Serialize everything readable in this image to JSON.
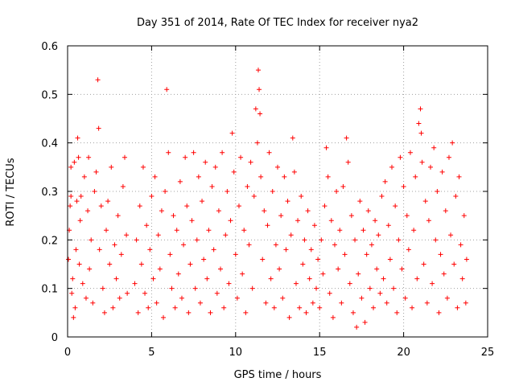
{
  "chart_data": {
    "type": "scatter",
    "title": "Day 351 of 2014, Rate Of TEC Index for receiver nya2",
    "xlabel": "GPS time / hours",
    "ylabel": "ROTI / TECUs",
    "xlim": [
      0,
      25
    ],
    "ylim": [
      0,
      0.6
    ],
    "xticks": [
      0,
      5,
      10,
      15,
      20,
      25
    ],
    "yticks": [
      0,
      0.1,
      0.2,
      0.3,
      0.4,
      0.5,
      0.6
    ],
    "xtick_labels": [
      "0",
      "5",
      "10",
      "15",
      "20",
      "25"
    ],
    "ytick_labels": [
      "0",
      "0.1",
      "0.2",
      "0.3",
      "0.4",
      "0.5",
      "0.6"
    ],
    "grid": true,
    "marker": "+",
    "marker_color": "#ff0000",
    "series": [
      {
        "name": "ROTI",
        "points": [
          [
            0.05,
            0.16
          ],
          [
            0.1,
            0.22
          ],
          [
            0.15,
            0.27
          ],
          [
            0.2,
            0.29
          ],
          [
            0.2,
            0.35
          ],
          [
            0.25,
            0.09
          ],
          [
            0.3,
            0.12
          ],
          [
            0.35,
            0.04
          ],
          [
            0.4,
            0.36
          ],
          [
            0.45,
            0.06
          ],
          [
            0.5,
            0.18
          ],
          [
            0.55,
            0.28
          ],
          [
            0.6,
            0.41
          ],
          [
            0.65,
            0.37
          ],
          [
            0.7,
            0.15
          ],
          [
            0.75,
            0.24
          ],
          [
            0.8,
            0.29
          ],
          [
            0.9,
            0.11
          ],
          [
            1.0,
            0.33
          ],
          [
            1.1,
            0.08
          ],
          [
            1.2,
            0.26
          ],
          [
            1.25,
            0.37
          ],
          [
            1.3,
            0.14
          ],
          [
            1.4,
            0.2
          ],
          [
            1.5,
            0.07
          ],
          [
            1.6,
            0.3
          ],
          [
            1.7,
            0.34
          ],
          [
            1.8,
            0.53
          ],
          [
            1.85,
            0.43
          ],
          [
            1.9,
            0.18
          ],
          [
            2.0,
            0.27
          ],
          [
            2.1,
            0.1
          ],
          [
            2.2,
            0.05
          ],
          [
            2.3,
            0.22
          ],
          [
            2.4,
            0.28
          ],
          [
            2.5,
            0.15
          ],
          [
            2.6,
            0.35
          ],
          [
            2.7,
            0.06
          ],
          [
            2.8,
            0.19
          ],
          [
            2.9,
            0.12
          ],
          [
            3.0,
            0.25
          ],
          [
            3.1,
            0.08
          ],
          [
            3.2,
            0.17
          ],
          [
            3.3,
            0.31
          ],
          [
            3.4,
            0.37
          ],
          [
            3.5,
            0.21
          ],
          [
            3.55,
            0.09
          ],
          [
            4.0,
            0.11
          ],
          [
            4.1,
            0.2
          ],
          [
            4.2,
            0.05
          ],
          [
            4.3,
            0.27
          ],
          [
            4.4,
            0.15
          ],
          [
            4.5,
            0.35
          ],
          [
            4.6,
            0.09
          ],
          [
            4.7,
            0.23
          ],
          [
            4.8,
            0.06
          ],
          [
            4.9,
            0.18
          ],
          [
            5.0,
            0.29
          ],
          [
            5.1,
            0.12
          ],
          [
            5.2,
            0.33
          ],
          [
            5.3,
            0.07
          ],
          [
            5.4,
            0.21
          ],
          [
            5.5,
            0.14
          ],
          [
            5.6,
            0.26
          ],
          [
            5.7,
            0.04
          ],
          [
            5.8,
            0.3
          ],
          [
            5.9,
            0.51
          ],
          [
            6.0,
            0.38
          ],
          [
            6.1,
            0.17
          ],
          [
            6.2,
            0.1
          ],
          [
            6.3,
            0.25
          ],
          [
            6.4,
            0.06
          ],
          [
            6.5,
            0.22
          ],
          [
            6.6,
            0.13
          ],
          [
            6.7,
            0.32
          ],
          [
            6.8,
            0.08
          ],
          [
            6.9,
            0.19
          ],
          [
            7.0,
            0.37
          ],
          [
            7.1,
            0.27
          ],
          [
            7.2,
            0.05
          ],
          [
            7.3,
            0.15
          ],
          [
            7.4,
            0.24
          ],
          [
            7.5,
            0.38
          ],
          [
            7.6,
            0.1
          ],
          [
            7.7,
            0.2
          ],
          [
            7.8,
            0.33
          ],
          [
            7.9,
            0.07
          ],
          [
            8.0,
            0.28
          ],
          [
            8.1,
            0.16
          ],
          [
            8.2,
            0.36
          ],
          [
            8.3,
            0.12
          ],
          [
            8.4,
            0.22
          ],
          [
            8.5,
            0.05
          ],
          [
            8.6,
            0.31
          ],
          [
            8.7,
            0.18
          ],
          [
            8.8,
            0.35
          ],
          [
            8.9,
            0.09
          ],
          [
            9.0,
            0.26
          ],
          [
            9.1,
            0.14
          ],
          [
            9.2,
            0.38
          ],
          [
            9.3,
            0.06
          ],
          [
            9.4,
            0.21
          ],
          [
            9.5,
            0.3
          ],
          [
            9.6,
            0.11
          ],
          [
            9.7,
            0.24
          ],
          [
            9.8,
            0.42
          ],
          [
            9.9,
            0.34
          ],
          [
            10.0,
            0.17
          ],
          [
            10.1,
            0.08
          ],
          [
            10.2,
            0.27
          ],
          [
            10.3,
            0.37
          ],
          [
            10.4,
            0.13
          ],
          [
            10.5,
            0.22
          ],
          [
            10.6,
            0.05
          ],
          [
            10.7,
            0.31
          ],
          [
            10.8,
            0.19
          ],
          [
            10.9,
            0.36
          ],
          [
            11.0,
            0.1
          ],
          [
            11.1,
            0.29
          ],
          [
            11.2,
            0.47
          ],
          [
            11.3,
            0.4
          ],
          [
            11.35,
            0.55
          ],
          [
            11.4,
            0.51
          ],
          [
            11.45,
            0.46
          ],
          [
            11.5,
            0.33
          ],
          [
            11.6,
            0.16
          ],
          [
            11.7,
            0.26
          ],
          [
            11.8,
            0.07
          ],
          [
            11.9,
            0.23
          ],
          [
            12.0,
            0.38
          ],
          [
            12.1,
            0.12
          ],
          [
            12.2,
            0.3
          ],
          [
            12.3,
            0.06
          ],
          [
            12.4,
            0.19
          ],
          [
            12.5,
            0.35
          ],
          [
            12.6,
            0.14
          ],
          [
            12.7,
            0.25
          ],
          [
            12.8,
            0.08
          ],
          [
            12.9,
            0.33
          ],
          [
            13.0,
            0.18
          ],
          [
            13.1,
            0.28
          ],
          [
            13.2,
            0.04
          ],
          [
            13.3,
            0.21
          ],
          [
            13.4,
            0.41
          ],
          [
            13.5,
            0.34
          ],
          [
            13.6,
            0.11
          ],
          [
            13.7,
            0.24
          ],
          [
            13.8,
            0.06
          ],
          [
            13.9,
            0.29
          ],
          [
            14.0,
            0.15
          ],
          [
            14.1,
            0.2
          ],
          [
            14.2,
            0.05
          ],
          [
            14.3,
            0.26
          ],
          [
            14.4,
            0.12
          ],
          [
            14.5,
            0.18
          ],
          [
            14.6,
            0.07
          ],
          [
            14.7,
            0.23
          ],
          [
            14.8,
            0.1
          ],
          [
            14.9,
            0.16
          ],
          [
            15.0,
            0.06
          ],
          [
            15.1,
            0.2
          ],
          [
            15.2,
            0.13
          ],
          [
            15.3,
            0.27
          ],
          [
            15.4,
            0.39
          ],
          [
            15.5,
            0.33
          ],
          [
            15.6,
            0.09
          ],
          [
            15.7,
            0.24
          ],
          [
            15.8,
            0.04
          ],
          [
            15.9,
            0.19
          ],
          [
            16.0,
            0.3
          ],
          [
            16.1,
            0.14
          ],
          [
            16.2,
            0.22
          ],
          [
            16.3,
            0.07
          ],
          [
            16.4,
            0.31
          ],
          [
            16.5,
            0.17
          ],
          [
            16.6,
            0.41
          ],
          [
            16.7,
            0.36
          ],
          [
            16.8,
            0.11
          ],
          [
            16.9,
            0.25
          ],
          [
            17.0,
            0.05
          ],
          [
            17.1,
            0.2
          ],
          [
            17.2,
            0.02
          ],
          [
            17.3,
            0.13
          ],
          [
            17.4,
            0.28
          ],
          [
            17.5,
            0.08
          ],
          [
            17.6,
            0.22
          ],
          [
            17.7,
            0.03
          ],
          [
            17.8,
            0.17
          ],
          [
            17.9,
            0.26
          ],
          [
            18.0,
            0.1
          ],
          [
            18.1,
            0.19
          ],
          [
            18.2,
            0.06
          ],
          [
            18.3,
            0.24
          ],
          [
            18.4,
            0.14
          ],
          [
            18.5,
            0.21
          ],
          [
            18.6,
            0.09
          ],
          [
            18.7,
            0.29
          ],
          [
            18.8,
            0.12
          ],
          [
            18.9,
            0.32
          ],
          [
            19.0,
            0.07
          ],
          [
            19.1,
            0.23
          ],
          [
            19.2,
            0.16
          ],
          [
            19.3,
            0.35
          ],
          [
            19.4,
            0.1
          ],
          [
            19.5,
            0.27
          ],
          [
            19.6,
            0.05
          ],
          [
            19.7,
            0.2
          ],
          [
            19.8,
            0.37
          ],
          [
            19.9,
            0.14
          ],
          [
            20.0,
            0.31
          ],
          [
            20.1,
            0.08
          ],
          [
            20.2,
            0.25
          ],
          [
            20.3,
            0.18
          ],
          [
            20.4,
            0.38
          ],
          [
            20.5,
            0.06
          ],
          [
            20.6,
            0.22
          ],
          [
            20.7,
            0.33
          ],
          [
            20.8,
            0.12
          ],
          [
            20.9,
            0.44
          ],
          [
            21.0,
            0.47
          ],
          [
            21.05,
            0.42
          ],
          [
            21.1,
            0.36
          ],
          [
            21.2,
            0.15
          ],
          [
            21.3,
            0.28
          ],
          [
            21.4,
            0.07
          ],
          [
            21.5,
            0.24
          ],
          [
            21.6,
            0.35
          ],
          [
            21.7,
            0.11
          ],
          [
            21.8,
            0.39
          ],
          [
            21.9,
            0.2
          ],
          [
            22.0,
            0.3
          ],
          [
            22.1,
            0.05
          ],
          [
            22.2,
            0.17
          ],
          [
            22.3,
            0.34
          ],
          [
            22.4,
            0.13
          ],
          [
            22.5,
            0.26
          ],
          [
            22.6,
            0.08
          ],
          [
            22.7,
            0.37
          ],
          [
            22.8,
            0.21
          ],
          [
            22.9,
            0.4
          ],
          [
            23.0,
            0.15
          ],
          [
            23.1,
            0.29
          ],
          [
            23.2,
            0.06
          ],
          [
            23.3,
            0.33
          ],
          [
            23.4,
            0.19
          ],
          [
            23.5,
            0.12
          ],
          [
            23.6,
            0.25
          ],
          [
            23.7,
            0.07
          ],
          [
            23.75,
            0.16
          ]
        ]
      }
    ]
  }
}
